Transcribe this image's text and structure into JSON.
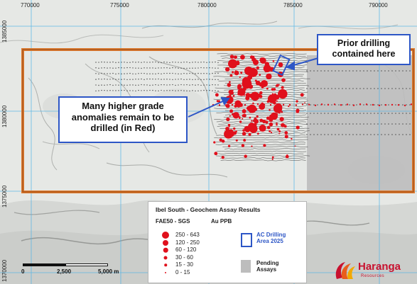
{
  "map": {
    "coordinates_top": [
      "770000",
      "775000",
      "780000",
      "785000",
      "790000"
    ],
    "coordinates_left": [
      "1385000",
      "1380000",
      "1375000",
      "1370000"
    ],
    "callouts": {
      "prior_drilling": "Prior drilling contained here",
      "higher_grade": "Many higher grade anomalies remain to be drilled (in Red)"
    },
    "scale_bar": {
      "labels": [
        "0",
        "2,500",
        "5,000 m"
      ]
    },
    "colors": {
      "tenement_outline": "#e07b2e",
      "callout_border": "#2d56c6",
      "anomaly": "#e0101c",
      "pending_assays": "#bdbdbd",
      "grid": "#55b4e6"
    }
  },
  "legend": {
    "title": "Ibel South - Geochem Assay Results",
    "subtitle": "FAE50 - SGS",
    "unit": "Au PPB",
    "ranges": [
      {
        "label": "250  -  643",
        "size": 10
      },
      {
        "label": "120  -  250",
        "size": 8
      },
      {
        "label": "60  -  120",
        "size": 6.5
      },
      {
        "label": "30  -  60",
        "size": 5
      },
      {
        "label": "15  -  30",
        "size": 3.5
      },
      {
        "label": "0  -  15",
        "size": 2
      }
    ],
    "ac_drilling": "AC Drilling Area 2025",
    "pending": "Pending Assays"
  },
  "logo": {
    "name": "Haranga",
    "tagline": "Resources",
    "icon": "haranga-swirl-logo-icon"
  }
}
